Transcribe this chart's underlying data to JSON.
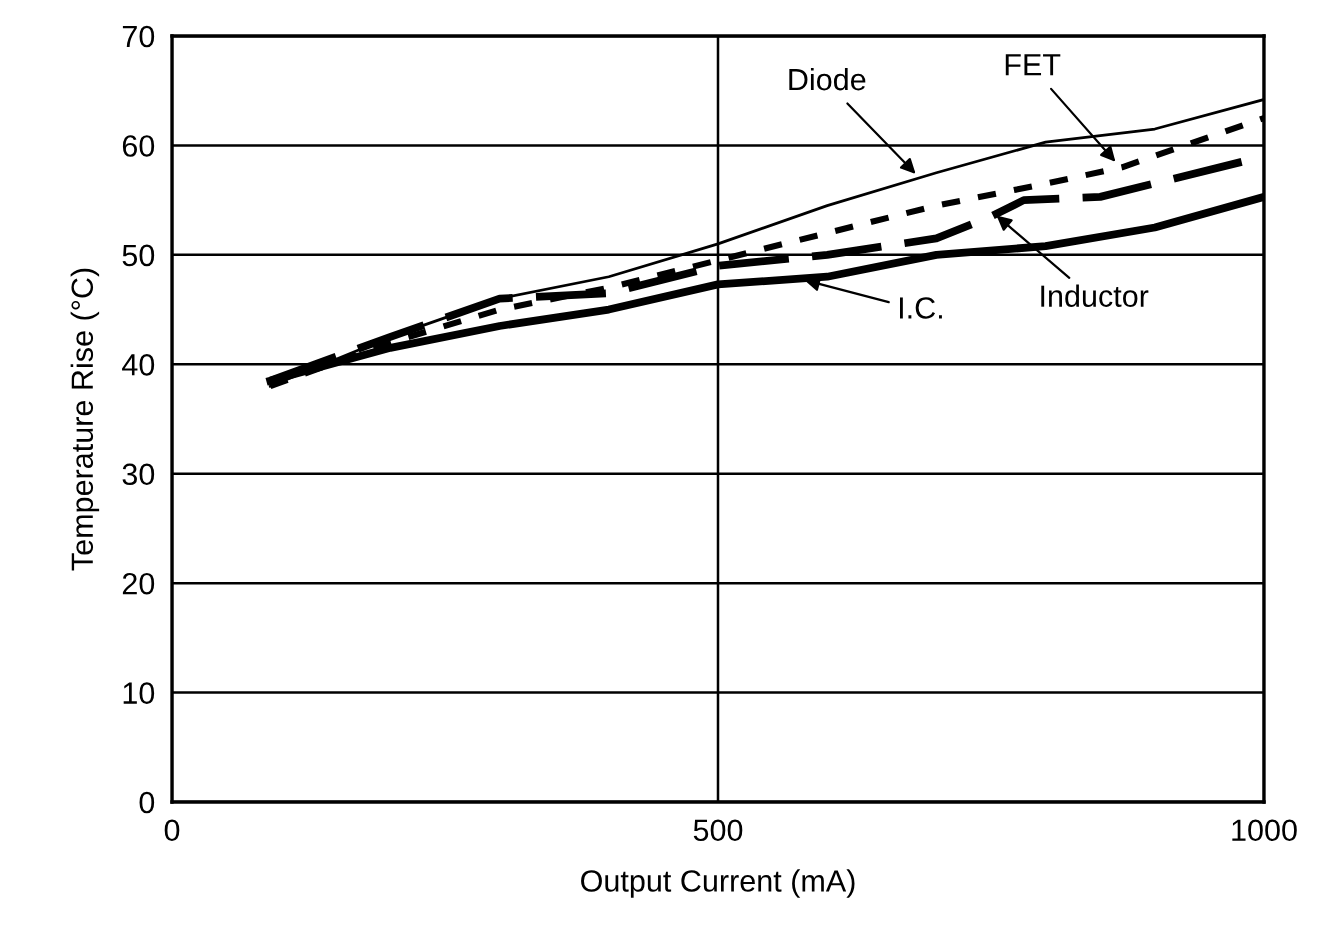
{
  "chart_data": {
    "type": "line",
    "xlabel": "Output Current (mA)",
    "ylabel": "Temperature Rise (°C)",
    "xlim": [
      0,
      1000
    ],
    "xticks": [
      0,
      500,
      1000
    ],
    "ylim": [
      0,
      70
    ],
    "yticks": [
      0,
      10,
      20,
      30,
      40,
      50,
      60,
      70
    ],
    "grid": true,
    "series": [
      {
        "color": "#000000",
        "line_style": "solid",
        "x": [
          90,
          200,
          300,
          400,
          500,
          600,
          700,
          800,
          900,
          1000
        ],
        "values": [
          38,
          42.5,
          46,
          48,
          51,
          54.5,
          57.5,
          60.3,
          61.5,
          64.2
        ]
      },
      {
        "color": "#000000",
        "line_style": "dotted",
        "x": [
          90,
          200,
          300,
          400,
          500,
          600,
          700,
          800,
          870,
          1000
        ],
        "values": [
          38,
          42,
          45,
          47,
          49.5,
          52,
          54.5,
          56.5,
          58,
          62.5
        ]
      },
      {
        "color": "#000000",
        "line_style": "dashed",
        "x": [
          90,
          200,
          300,
          400,
          500,
          600,
          700,
          750,
          780,
          850,
          1000
        ],
        "values": [
          38.5,
          42.5,
          46,
          46.5,
          49,
          50,
          51.5,
          53.5,
          55,
          55.3,
          59
        ]
      },
      {
        "color": "#000000",
        "line_style": "solid",
        "x": [
          90,
          200,
          300,
          400,
          500,
          600,
          700,
          800,
          900,
          1000
        ],
        "values": [
          38.5,
          41.5,
          43.5,
          45,
          47.3,
          48,
          50,
          50.8,
          52.5,
          55.3
        ]
      }
    ],
    "annotations": [
      {
        "text": "Diode",
        "x": 681,
        "y": 57.4
      },
      {
        "text": "FET",
        "x": 864,
        "y": 58.5
      },
      {
        "text": "Inductor",
        "x": 755,
        "y": 53.6
      },
      {
        "text": "I.C.",
        "x": 579,
        "y": 47.7
      }
    ]
  }
}
